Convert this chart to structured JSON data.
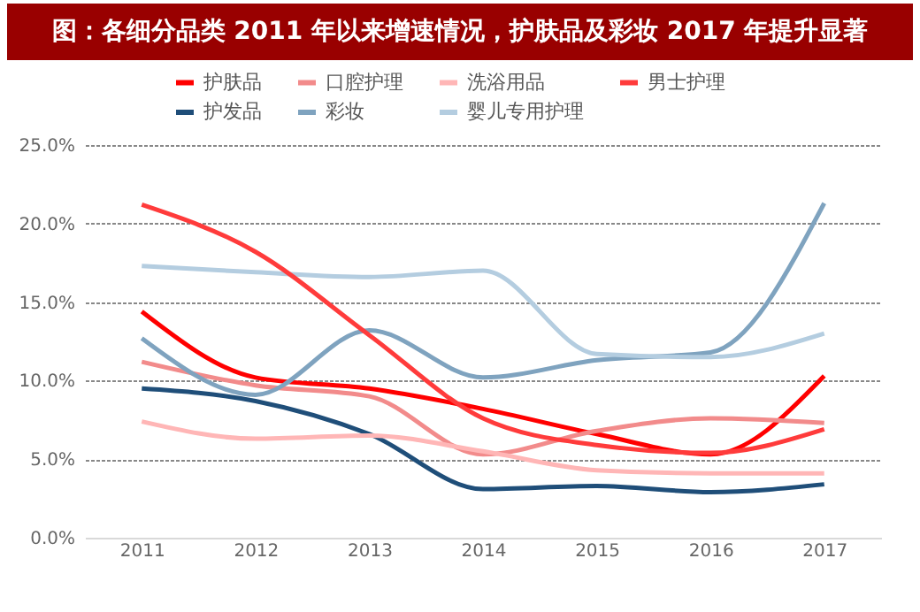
{
  "chart_data": {
    "type": "line",
    "title": "图：各细分品类 2011 年以来增速情况，护肤品及彩妆 2017 年提升显著",
    "categories": [
      "2011",
      "2012",
      "2013",
      "2014",
      "2015",
      "2016",
      "2017"
    ],
    "series": [
      {
        "name": "护肤品",
        "color": "#ff0000",
        "values": [
          14.4,
          10.2,
          9.5,
          8.2,
          6.6,
          5.3,
          10.3
        ]
      },
      {
        "name": "护发品",
        "color": "#1f4e79",
        "values": [
          9.5,
          8.7,
          6.6,
          3.1,
          3.3,
          2.9,
          3.4
        ]
      },
      {
        "name": "口腔护理",
        "color": "#f28b8b",
        "values": [
          11.2,
          9.7,
          9.0,
          5.3,
          6.8,
          7.6,
          7.3
        ]
      },
      {
        "name": "彩妆",
        "color": "#7fa3bf",
        "values": [
          12.7,
          9.1,
          13.2,
          10.2,
          11.3,
          11.8,
          21.3
        ]
      },
      {
        "name": "洗浴用品",
        "color": "#ffb6b6",
        "values": [
          7.4,
          6.3,
          6.5,
          5.5,
          4.3,
          4.1,
          4.1
        ]
      },
      {
        "name": "婴儿专用护理",
        "color": "#b4cde0",
        "values": [
          17.3,
          16.9,
          16.6,
          17.0,
          11.7,
          11.5,
          13.0
        ]
      },
      {
        "name": "男士护理",
        "color": "#ff3b3b",
        "values": [
          21.2,
          18.2,
          12.9,
          7.6,
          5.9,
          5.4,
          6.9
        ]
      }
    ],
    "ylim": [
      0,
      25
    ],
    "yticks": [
      {
        "value": 0,
        "label": "0.0%"
      },
      {
        "value": 5,
        "label": "5.0%"
      },
      {
        "value": 10,
        "label": "10.0%"
      },
      {
        "value": 15,
        "label": "15.0%"
      },
      {
        "value": 20,
        "label": "20.0%"
      },
      {
        "value": 25,
        "label": "25.0%"
      }
    ],
    "grid": "y",
    "legend": "top",
    "marker": "none",
    "line_style": "solid"
  }
}
